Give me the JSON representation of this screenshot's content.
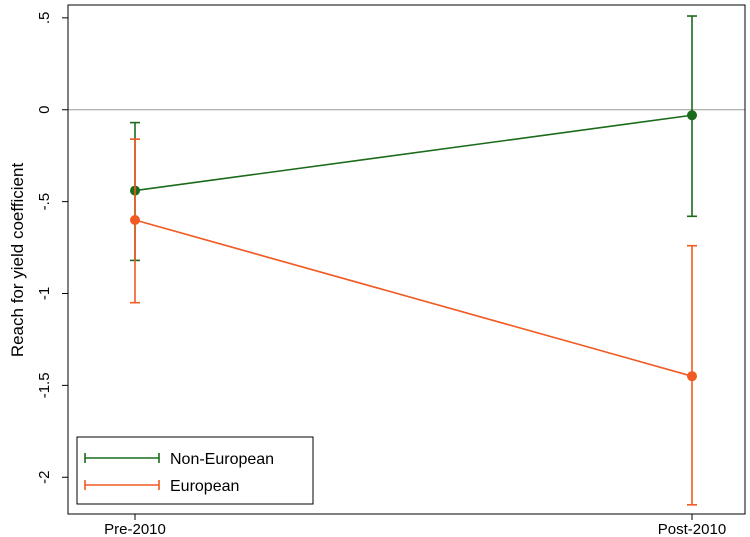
{
  "chart_data": {
    "type": "line",
    "title": "",
    "xlabel": "",
    "ylabel": "Reach for yield coefficient",
    "categories": [
      "Pre-2010",
      "Post-2010"
    ],
    "ylim": [
      -2.2,
      0.57
    ],
    "yticks": [
      -2,
      -1.5,
      -1,
      -0.5,
      0,
      0.5
    ],
    "ytick_labels": [
      "-2",
      "-1.5",
      "-1",
      "-.5",
      "0",
      ".5"
    ],
    "reference_line_y": 0,
    "legend_position": "bottom-left",
    "grid": false,
    "error_bars": true,
    "series": [
      {
        "name": "Non-European",
        "color": "#1a6b1a",
        "values": [
          -0.44,
          -0.03
        ],
        "lower": [
          -0.82,
          -0.58
        ],
        "upper": [
          -0.07,
          0.51
        ]
      },
      {
        "name": "European",
        "color": "#f15a22",
        "values": [
          -0.6,
          -1.45
        ],
        "lower": [
          -1.05,
          -2.15
        ],
        "upper": [
          -0.16,
          -0.74
        ]
      }
    ]
  }
}
